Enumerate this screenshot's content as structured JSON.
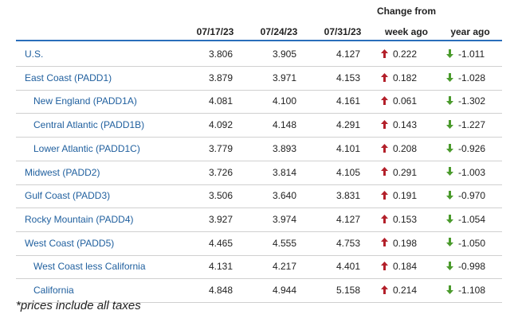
{
  "header": {
    "col1": "07/17/23",
    "col2": "07/24/23",
    "col3": "07/31/23",
    "change_group": "Change from",
    "week_ago": "week ago",
    "year_ago": "year ago"
  },
  "colors": {
    "region_link": "#1f5f9e",
    "up_arrow": "#b3202a",
    "down_arrow": "#4a9a2c",
    "rule": "#2a6ebb"
  },
  "rows": [
    {
      "region": "U.S.",
      "indent": false,
      "v1": "3.806",
      "v2": "3.905",
      "v3": "4.127",
      "week": "0.222",
      "year": "-1.011"
    },
    {
      "region": "East Coast (PADD1)",
      "indent": false,
      "v1": "3.879",
      "v2": "3.971",
      "v3": "4.153",
      "week": "0.182",
      "year": "-1.028"
    },
    {
      "region": "New England (PADD1A)",
      "indent": true,
      "v1": "4.081",
      "v2": "4.100",
      "v3": "4.161",
      "week": "0.061",
      "year": "-1.302"
    },
    {
      "region": "Central Atlantic (PADD1B)",
      "indent": true,
      "v1": "4.092",
      "v2": "4.148",
      "v3": "4.291",
      "week": "0.143",
      "year": "-1.227"
    },
    {
      "region": "Lower Atlantic (PADD1C)",
      "indent": true,
      "v1": "3.779",
      "v2": "3.893",
      "v3": "4.101",
      "week": "0.208",
      "year": "-0.926"
    },
    {
      "region": "Midwest (PADD2)",
      "indent": false,
      "v1": "3.726",
      "v2": "3.814",
      "v3": "4.105",
      "week": "0.291",
      "year": "-1.003"
    },
    {
      "region": "Gulf Coast (PADD3)",
      "indent": false,
      "v1": "3.506",
      "v2": "3.640",
      "v3": "3.831",
      "week": "0.191",
      "year": "-0.970"
    },
    {
      "region": "Rocky Mountain (PADD4)",
      "indent": false,
      "v1": "3.927",
      "v2": "3.974",
      "v3": "4.127",
      "week": "0.153",
      "year": "-1.054"
    },
    {
      "region": "West Coast (PADD5)",
      "indent": false,
      "v1": "4.465",
      "v2": "4.555",
      "v3": "4.753",
      "week": "0.198",
      "year": "-1.050"
    },
    {
      "region": "West Coast less California",
      "indent": true,
      "v1": "4.131",
      "v2": "4.217",
      "v3": "4.401",
      "week": "0.184",
      "year": "-0.998"
    },
    {
      "region": "California",
      "indent": true,
      "v1": "4.848",
      "v2": "4.944",
      "v3": "5.158",
      "week": "0.214",
      "year": "-1.108"
    }
  ],
  "footnote": "*prices include all taxes"
}
